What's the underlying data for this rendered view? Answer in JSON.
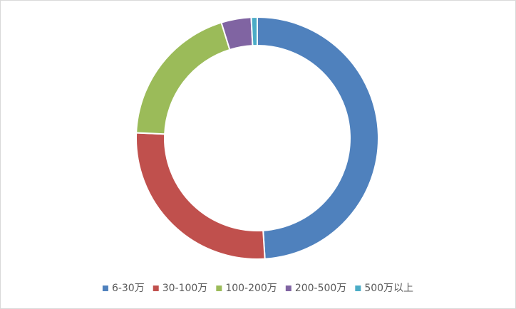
{
  "chart_data": {
    "type": "donut",
    "categories": [
      "6-30万",
      "30-100万",
      "100-200万",
      "200-500万",
      "500万以上"
    ],
    "values": [
      49,
      26.7,
      19.5,
      4,
      0.8
    ],
    "colors": [
      "#4f81bd",
      "#c0504d",
      "#9bbb59",
      "#8064a2",
      "#4bacc6"
    ],
    "legend": "bottom"
  }
}
